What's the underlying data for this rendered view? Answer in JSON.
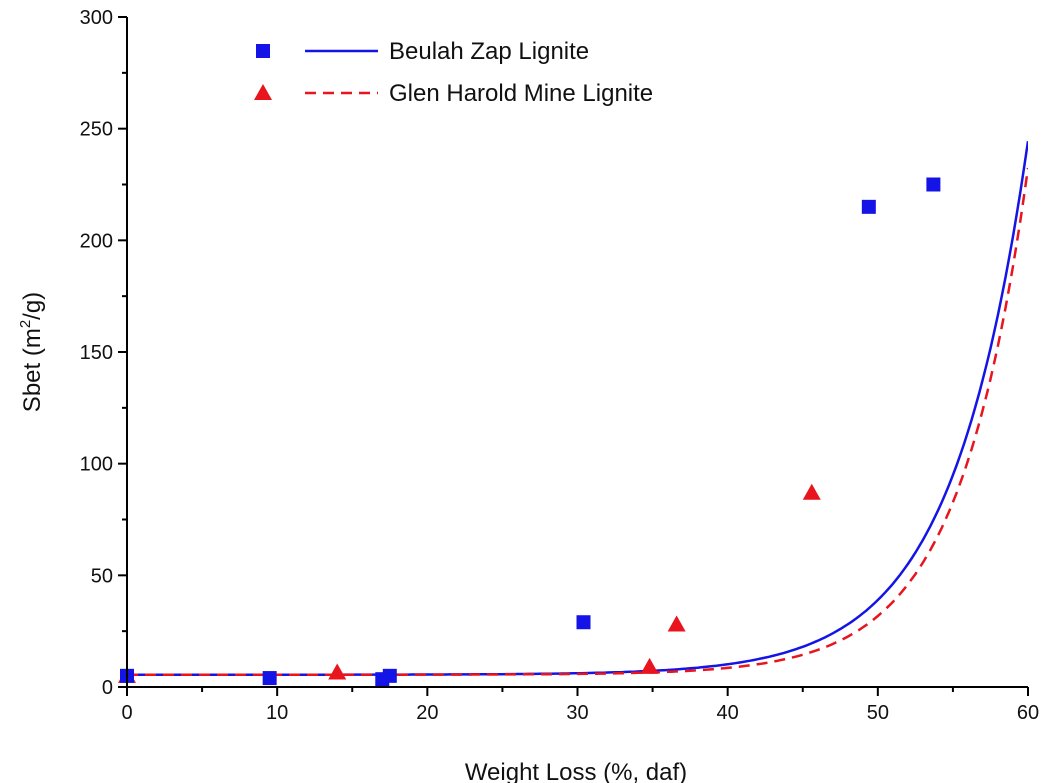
{
  "chart_data": {
    "type": "scatter",
    "xlabel": "Weight Loss (%, daf)",
    "ylabel_main": "Sbet (m",
    "ylabel_sup": "2",
    "ylabel_tail": "/g)",
    "xlim": [
      0,
      60
    ],
    "ylim": [
      0,
      300
    ],
    "xticks": [
      0,
      10,
      20,
      30,
      40,
      50,
      60
    ],
    "yticks": [
      0,
      50,
      100,
      150,
      200,
      250,
      300
    ],
    "grid": false,
    "legend_position": "top-left",
    "series": [
      {
        "name": "Beulah Zap Lignite",
        "marker": "square",
        "line_style": "solid",
        "color": "#1414e6",
        "points": [
          [
            0,
            5
          ],
          [
            9.5,
            4
          ],
          [
            17,
            3.5
          ],
          [
            17.5,
            5
          ],
          [
            30.4,
            29
          ],
          [
            49.4,
            215
          ],
          [
            53.7,
            225
          ]
        ],
        "fit": {
          "A": 5.5,
          "B": 0.0018,
          "C": 0.1966
        }
      },
      {
        "name": "Glen Harold Mine Lignite",
        "marker": "triangle",
        "line_style": "dashed",
        "color": "#e8141e",
        "points": [
          [
            0,
            5
          ],
          [
            14,
            6.5
          ],
          [
            34.8,
            9
          ],
          [
            36.6,
            28
          ],
          [
            45.6,
            87
          ]
        ],
        "fit": {
          "A": 5.5,
          "B": 0.00055,
          "C": 0.2155
        }
      }
    ]
  }
}
